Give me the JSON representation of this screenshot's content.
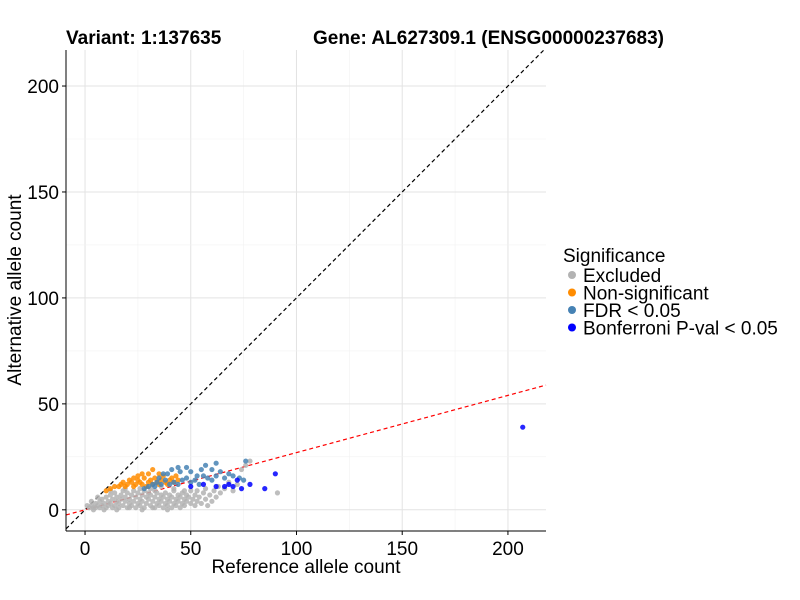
{
  "chart_data": {
    "type": "scatter",
    "title_variant": "Variant: 1:137635",
    "title_gene": "Gene: AL627309.1 (ENSG00000237683)",
    "xlabel": "Reference allele count",
    "ylabel": "Alternative allele count",
    "xlim": [
      -9,
      218
    ],
    "ylim": [
      -10,
      217
    ],
    "xticks": [
      0,
      50,
      100,
      150,
      200
    ],
    "yticks": [
      0,
      50,
      100,
      150,
      200
    ],
    "grid": true,
    "reference_lines": [
      {
        "name": "identity",
        "slope": 1,
        "intercept": 0,
        "color": "#000000",
        "style": "dashed"
      },
      {
        "name": "expected-ratio",
        "slope": 0.27,
        "intercept": 0,
        "color": "#ff0000",
        "style": "dashed"
      }
    ],
    "legend": {
      "title": "Significance",
      "position": "right",
      "entries": [
        {
          "label": "Excluded",
          "color": "#b3b3b3"
        },
        {
          "label": "Non-significant",
          "color": "#ff8c00"
        },
        {
          "label": "FDR < 0.05",
          "color": "#4682b4"
        },
        {
          "label": "Bonferroni P-val < 0.05",
          "color": "#0000ff"
        }
      ]
    },
    "series": [
      {
        "name": "Excluded",
        "color": "#b3b3b3",
        "points": [
          [
            2,
            1
          ],
          [
            3,
            2
          ],
          [
            4,
            1
          ],
          [
            5,
            3
          ],
          [
            5,
            1
          ],
          [
            6,
            2
          ],
          [
            7,
            4
          ],
          [
            7,
            1
          ],
          [
            8,
            2
          ],
          [
            8,
            5
          ],
          [
            9,
            3
          ],
          [
            10,
            1
          ],
          [
            10,
            6
          ],
          [
            11,
            2
          ],
          [
            11,
            4
          ],
          [
            12,
            3
          ],
          [
            12,
            7
          ],
          [
            13,
            1
          ],
          [
            13,
            5
          ],
          [
            14,
            2
          ],
          [
            14,
            8
          ],
          [
            15,
            4
          ],
          [
            15,
            6
          ],
          [
            16,
            1
          ],
          [
            16,
            3
          ],
          [
            17,
            5
          ],
          [
            17,
            7
          ],
          [
            18,
            2
          ],
          [
            18,
            9
          ],
          [
            19,
            4
          ],
          [
            19,
            6
          ],
          [
            20,
            1
          ],
          [
            20,
            8
          ],
          [
            21,
            3
          ],
          [
            21,
            5
          ],
          [
            22,
            7
          ],
          [
            22,
            2
          ],
          [
            23,
            4
          ],
          [
            23,
            9
          ],
          [
            24,
            1
          ],
          [
            24,
            6
          ],
          [
            25,
            3
          ],
          [
            25,
            8
          ],
          [
            26,
            5
          ],
          [
            26,
            2
          ],
          [
            27,
            7
          ],
          [
            27,
            4
          ],
          [
            28,
            1
          ],
          [
            28,
            9
          ],
          [
            29,
            6
          ],
          [
            29,
            3
          ],
          [
            30,
            8
          ],
          [
            30,
            5
          ],
          [
            31,
            2
          ],
          [
            31,
            7
          ],
          [
            32,
            4
          ],
          [
            32,
            1
          ],
          [
            33,
            9
          ],
          [
            33,
            6
          ],
          [
            34,
            3
          ],
          [
            34,
            8
          ],
          [
            35,
            5
          ],
          [
            35,
            2
          ],
          [
            36,
            7
          ],
          [
            36,
            4
          ],
          [
            37,
            1
          ],
          [
            37,
            6
          ],
          [
            38,
            3
          ],
          [
            38,
            8
          ],
          [
            39,
            5
          ],
          [
            39,
            2
          ],
          [
            40,
            7
          ],
          [
            40,
            4
          ],
          [
            41,
            1
          ],
          [
            41,
            6
          ],
          [
            42,
            3
          ],
          [
            42,
            9
          ],
          [
            43,
            5
          ],
          [
            43,
            2
          ],
          [
            44,
            7
          ],
          [
            44,
            4
          ],
          [
            45,
            1
          ],
          [
            45,
            6
          ],
          [
            46,
            3
          ],
          [
            46,
            8
          ],
          [
            47,
            5
          ],
          [
            47,
            2
          ],
          [
            48,
            7
          ],
          [
            48,
            4
          ],
          [
            49,
            6
          ],
          [
            50,
            3
          ],
          [
            50,
            9
          ],
          [
            51,
            5
          ],
          [
            52,
            2
          ],
          [
            52,
            7
          ],
          [
            53,
            4
          ],
          [
            54,
            6
          ],
          [
            55,
            3
          ],
          [
            56,
            8
          ],
          [
            57,
            5
          ],
          [
            58,
            2
          ],
          [
            59,
            7
          ],
          [
            60,
            4
          ],
          [
            61,
            9
          ],
          [
            62,
            6
          ],
          [
            63,
            11
          ],
          [
            64,
            8
          ],
          [
            66,
            10
          ],
          [
            68,
            13
          ],
          [
            70,
            9
          ],
          [
            72,
            12
          ],
          [
            74,
            19
          ],
          [
            76,
            21
          ],
          [
            78,
            23
          ],
          [
            91,
            8
          ],
          [
            4,
            0
          ],
          [
            9,
            0
          ],
          [
            15,
            0
          ],
          [
            21,
            1
          ],
          [
            27,
            0
          ],
          [
            33,
            1
          ],
          [
            39,
            0
          ],
          [
            26,
            10
          ],
          [
            31,
            10
          ],
          [
            36,
            11
          ],
          [
            42,
            10
          ],
          [
            47,
            9
          ],
          [
            53,
            9
          ],
          [
            57,
            10
          ],
          [
            19,
            10
          ],
          [
            12,
            9
          ],
          [
            6,
            6
          ],
          [
            3,
            4
          ],
          [
            1,
            2
          ]
        ]
      },
      {
        "name": "Non-significant",
        "color": "#ff8c00",
        "points": [
          [
            10,
            9
          ],
          [
            12,
            10
          ],
          [
            14,
            11
          ],
          [
            16,
            11
          ],
          [
            17,
            12
          ],
          [
            18,
            13
          ],
          [
            19,
            11
          ],
          [
            20,
            12
          ],
          [
            21,
            14
          ],
          [
            22,
            13
          ],
          [
            23,
            11
          ],
          [
            24,
            12
          ],
          [
            25,
            14
          ],
          [
            26,
            13
          ],
          [
            27,
            12
          ],
          [
            28,
            15
          ],
          [
            29,
            11
          ],
          [
            30,
            13
          ],
          [
            31,
            14
          ],
          [
            32,
            12
          ],
          [
            33,
            15
          ],
          [
            34,
            13
          ],
          [
            35,
            12
          ],
          [
            36,
            14
          ],
          [
            37,
            16
          ],
          [
            38,
            13
          ],
          [
            39,
            12
          ],
          [
            40,
            14
          ],
          [
            41,
            15
          ],
          [
            42,
            13
          ],
          [
            43,
            16
          ],
          [
            44,
            14
          ],
          [
            32,
            19
          ],
          [
            30,
            17
          ],
          [
            27,
            17
          ],
          [
            25,
            16
          ],
          [
            23,
            15
          ],
          [
            35,
            17
          ]
        ]
      },
      {
        "name": "FDR < 0.05",
        "color": "#4682b4",
        "points": [
          [
            30,
            11
          ],
          [
            33,
            11
          ],
          [
            36,
            12
          ],
          [
            38,
            14
          ],
          [
            40,
            12
          ],
          [
            42,
            13
          ],
          [
            44,
            12
          ],
          [
            46,
            14
          ],
          [
            48,
            15
          ],
          [
            50,
            13
          ],
          [
            52,
            14
          ],
          [
            54,
            12
          ],
          [
            56,
            16
          ],
          [
            58,
            15
          ],
          [
            60,
            14
          ],
          [
            62,
            16
          ],
          [
            64,
            18
          ],
          [
            66,
            15
          ],
          [
            68,
            17
          ],
          [
            70,
            16
          ],
          [
            45,
            18
          ],
          [
            48,
            20
          ],
          [
            50,
            18
          ],
          [
            53,
            16
          ],
          [
            55,
            19
          ],
          [
            57,
            21
          ],
          [
            60,
            19
          ],
          [
            62,
            22
          ],
          [
            44,
            20
          ],
          [
            41,
            19
          ],
          [
            39,
            17
          ],
          [
            37,
            17
          ],
          [
            35,
            15
          ],
          [
            34,
            13
          ],
          [
            32,
            12
          ],
          [
            28,
            10
          ],
          [
            73,
            15
          ],
          [
            75,
            14
          ],
          [
            76,
            23
          ]
        ]
      },
      {
        "name": "Bonferroni P-val < 0.05",
        "color": "#0000ff",
        "points": [
          [
            50,
            11
          ],
          [
            56,
            12
          ],
          [
            62,
            11
          ],
          [
            66,
            11
          ],
          [
            68,
            12
          ],
          [
            70,
            11
          ],
          [
            72,
            14
          ],
          [
            74,
            10
          ],
          [
            78,
            12
          ],
          [
            85,
            10
          ],
          [
            90,
            17
          ],
          [
            207,
            39
          ]
        ]
      }
    ]
  }
}
